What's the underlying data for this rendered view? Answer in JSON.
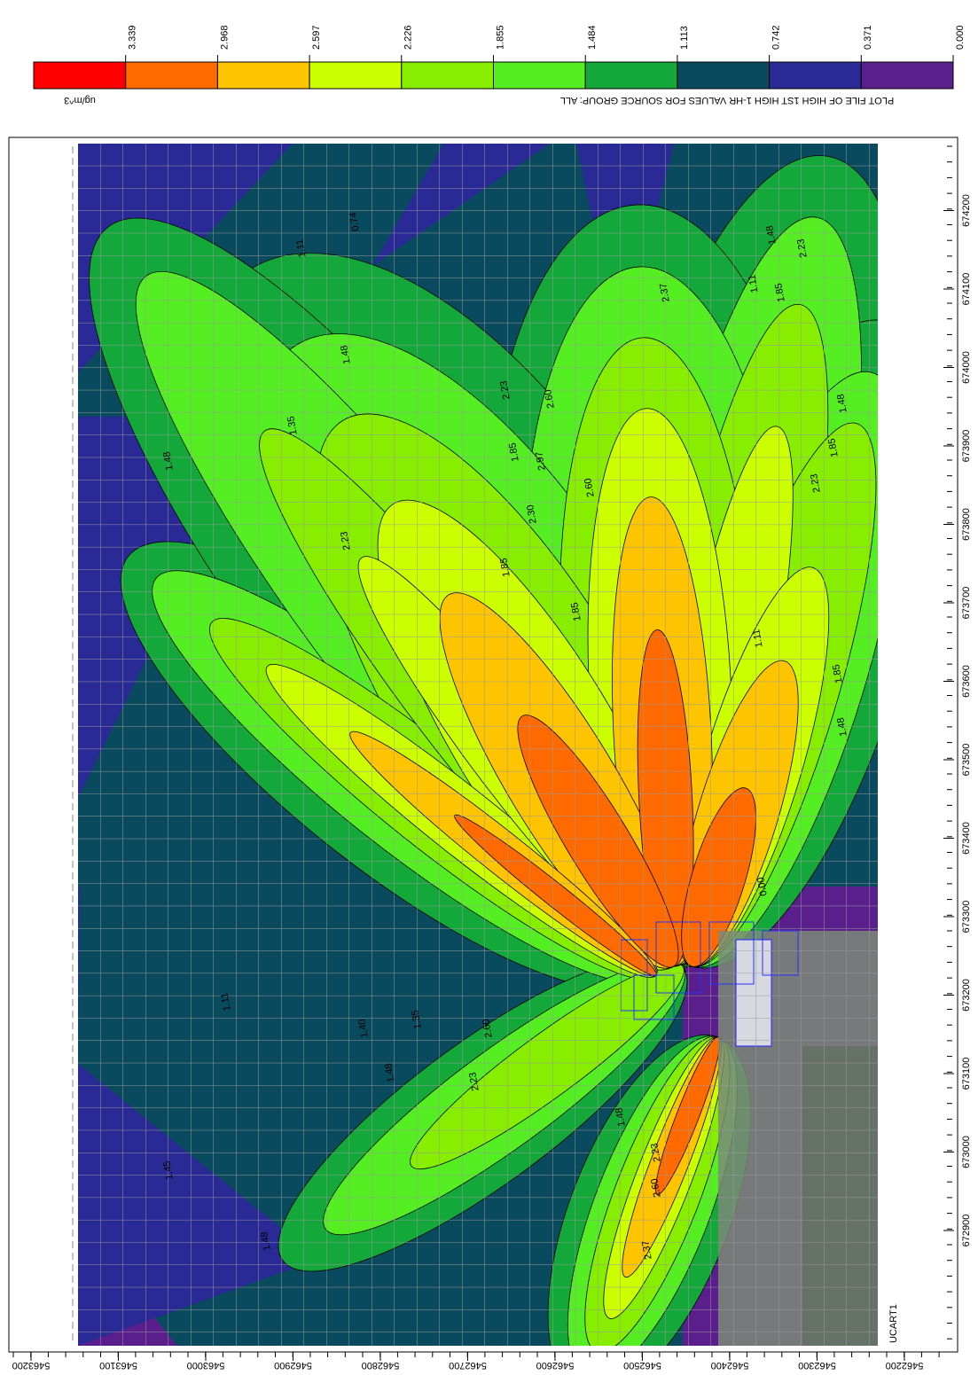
{
  "legend": {
    "units": "ug/m^3",
    "title": "PLOT FILE OF HIGH 1ST HIGH 1-HR VALUES FOR SOURCE GROUP: ALL",
    "levels": [
      "3.339",
      "2.968",
      "2.597",
      "2.226",
      "1.855",
      "1.484",
      "1.113",
      "0.742",
      "0.371",
      "0.000"
    ],
    "colors": [
      "#ff0000",
      "#ff6a00",
      "#ffc400",
      "#ccff00",
      "#88ee00",
      "#55ee22",
      "#14a83a",
      "#0a4a5e",
      "#2a2a96",
      "#5a1f8c"
    ]
  },
  "axes": {
    "easting": [
      "672900",
      "673000",
      "673100",
      "673200",
      "673300",
      "673400",
      "673500",
      "673600",
      "673700",
      "673800",
      "673900",
      "674000",
      "674100",
      "674200"
    ],
    "northing": [
      "5462200",
      "5462300",
      "5462400",
      "5462500",
      "5462600",
      "5462700",
      "5462800",
      "5462900",
      "5463000",
      "5463100",
      "5463200"
    ]
  },
  "map_label": "UCART1",
  "contour_labels": [
    "2.23",
    "1.48",
    "1.85",
    "1.11",
    "2.23",
    "1.48",
    "1.85",
    "2.37",
    "2.60",
    "1.85",
    "2.23",
    "2.97",
    "2.60",
    "2.30",
    "1.85",
    "2.23",
    "1.48",
    "1.35",
    "1.48",
    "1.11",
    "0.74",
    "1.85",
    "2.60",
    "2.23",
    "1.48",
    "1.40",
    "1.35",
    "1.11",
    "1.48",
    "1.45",
    "2.37",
    "2.60",
    "2.23",
    "1.48",
    "0.00",
    "1.11",
    "1.48",
    "1.85"
  ]
}
